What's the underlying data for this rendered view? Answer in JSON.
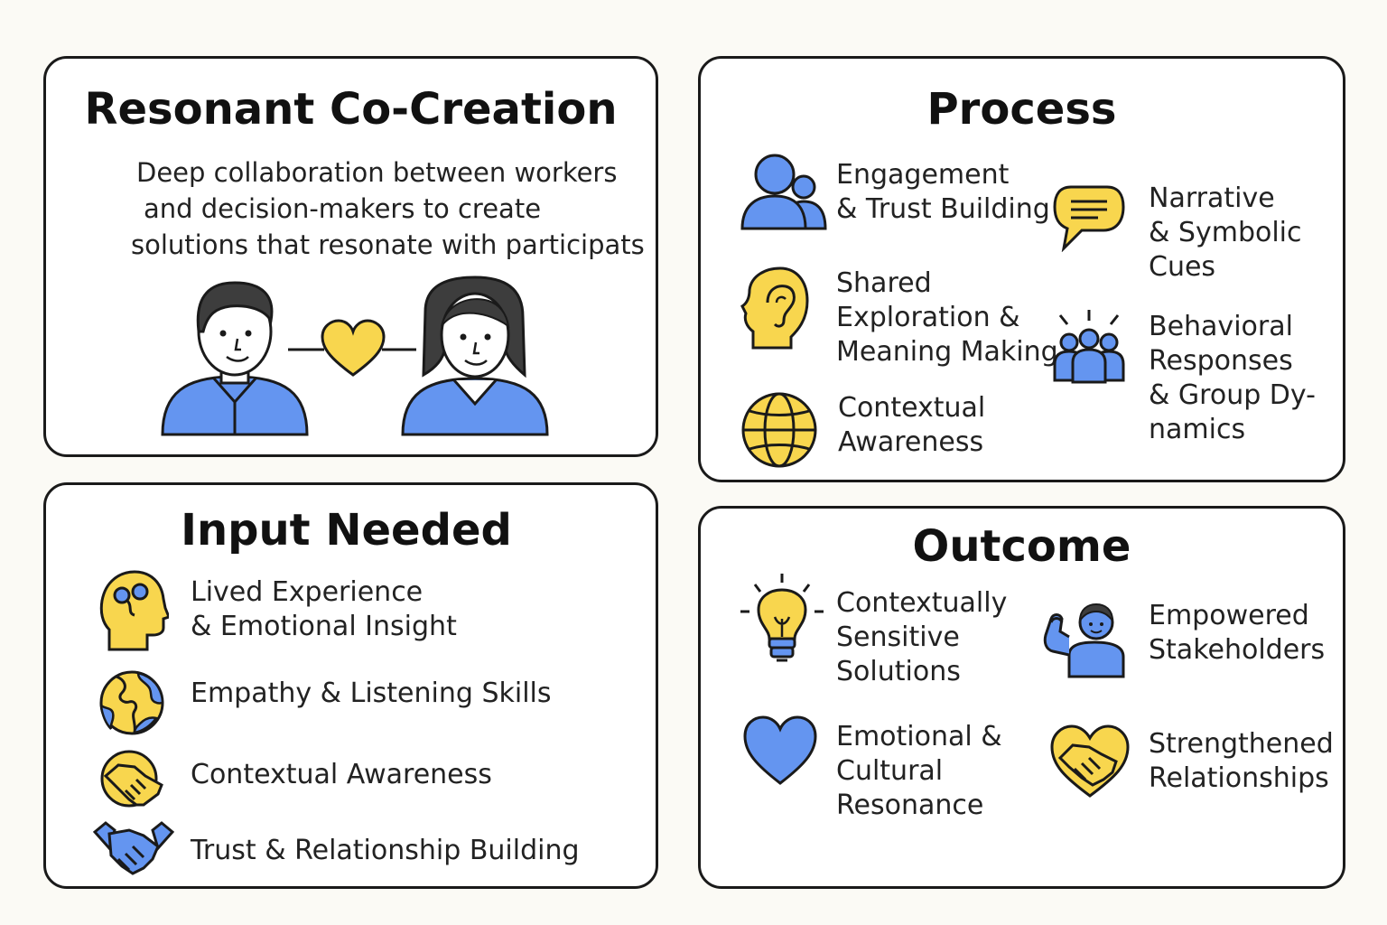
{
  "colors": {
    "blue": "#6495f0",
    "yellow": "#f8d64e",
    "outline": "#1a1a1a",
    "background": "#fbfaf5"
  },
  "cocreation": {
    "title": "Resonant Co-Creation",
    "desc_lines": [
      "Deep collaboration between workers",
      "and decision-makers to create",
      "solutions that resonate with participats"
    ],
    "illustration_icons": [
      "man-avatar-icon",
      "heart-icon",
      "woman-avatar-icon"
    ]
  },
  "process": {
    "title": "Process",
    "items": [
      {
        "icon": "people-icon",
        "lines": [
          "Engagement",
          "& Trust Building"
        ]
      },
      {
        "icon": "ear-head-icon",
        "lines": [
          "Shared",
          "Exploration &",
          "Meaning Making"
        ]
      },
      {
        "icon": "globe-icon",
        "lines": [
          "Contextual",
          "Awareness"
        ]
      },
      {
        "icon": "speech-bubble-icon",
        "lines": [
          "Narrative",
          "& Symbolic",
          "Cues"
        ]
      },
      {
        "icon": "group-icon",
        "lines": [
          "Behavioral",
          "Responses",
          "& Group Dy-",
          "namics"
        ]
      }
    ]
  },
  "input": {
    "title": "Input Needed",
    "items": [
      {
        "icon": "head-brain-icon",
        "lines": [
          "Lived Experience",
          "& Emotional Insight"
        ]
      },
      {
        "icon": "earth-icon",
        "lines": [
          "Empathy & Listening Skills"
        ]
      },
      {
        "icon": "handshake-circle-icon",
        "lines": [
          "Contextual Awareness"
        ]
      },
      {
        "icon": "handshake-icon",
        "lines": [
          "Trust & Relationship Building"
        ]
      }
    ]
  },
  "outcome": {
    "title": "Outcome",
    "items": [
      {
        "icon": "lightbulb-icon",
        "lines": [
          "Contextually",
          "Sensitive",
          "Solutions"
        ]
      },
      {
        "icon": "heart-icon",
        "lines": [
          "Emotional &",
          "Cultural",
          "Resonance"
        ]
      },
      {
        "icon": "strong-person-icon",
        "lines": [
          "Empowered",
          "Stakeholders"
        ]
      },
      {
        "icon": "heart-handshake-icon",
        "lines": [
          "Strengthened",
          "Relationships"
        ]
      }
    ]
  }
}
